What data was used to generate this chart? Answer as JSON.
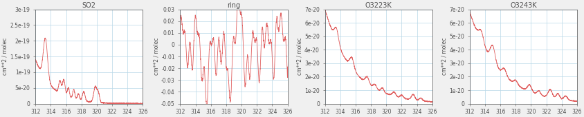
{
  "titles": [
    "SO2",
    "ring",
    "O3223K",
    "O3243K"
  ],
  "ylabel": "cm**2 / molec",
  "xlim": [
    312,
    326
  ],
  "xticks": [
    312,
    314,
    316,
    318,
    320,
    322,
    324,
    326
  ],
  "panels": [
    {
      "ylim": [
        0,
        3e-19
      ],
      "yticks": [
        0,
        5e-20,
        1e-19,
        1.5e-19,
        2e-19,
        2.5e-19,
        3e-19
      ],
      "ytick_labels": [
        "0",
        "5e-20",
        "1e-19",
        "1.5e-19",
        "2e-19",
        "2.5e-19",
        "3e-19"
      ]
    },
    {
      "ylim": [
        -0.05,
        0.03
      ],
      "yticks": [
        -0.05,
        -0.04,
        -0.03,
        -0.02,
        -0.01,
        0,
        0.01,
        0.02,
        0.03
      ],
      "ytick_labels": [
        "-0.05",
        "-0.04",
        "-0.03",
        "-0.02",
        "-0.01",
        "0",
        "0.01",
        "0.02",
        "0.03"
      ]
    },
    {
      "ylim": [
        0,
        7e-20
      ],
      "yticks": [
        0,
        1e-20,
        2e-20,
        3e-20,
        4e-20,
        5e-20,
        6e-20,
        7e-20
      ],
      "ytick_labels": [
        "0",
        "1e-20",
        "2e-20",
        "3e-20",
        "4e-20",
        "5e-20",
        "6e-20",
        "7e-20"
      ]
    },
    {
      "ylim": [
        0,
        7e-20
      ],
      "yticks": [
        0,
        1e-20,
        2e-20,
        3e-20,
        4e-20,
        5e-20,
        6e-20,
        7e-20
      ],
      "ytick_labels": [
        "0",
        "1e-20",
        "2e-20",
        "3e-20",
        "4e-20",
        "5e-20",
        "6e-20",
        "7e-20"
      ]
    }
  ],
  "line_color": "#e06060",
  "grid_color": "#b8d8e8",
  "bg_color": "#f0f0f0",
  "plot_bg_color": "#ffffff",
  "title_fontsize": 7,
  "tick_fontsize": 5.5,
  "ylabel_fontsize": 5.5,
  "text_color": "#505050"
}
